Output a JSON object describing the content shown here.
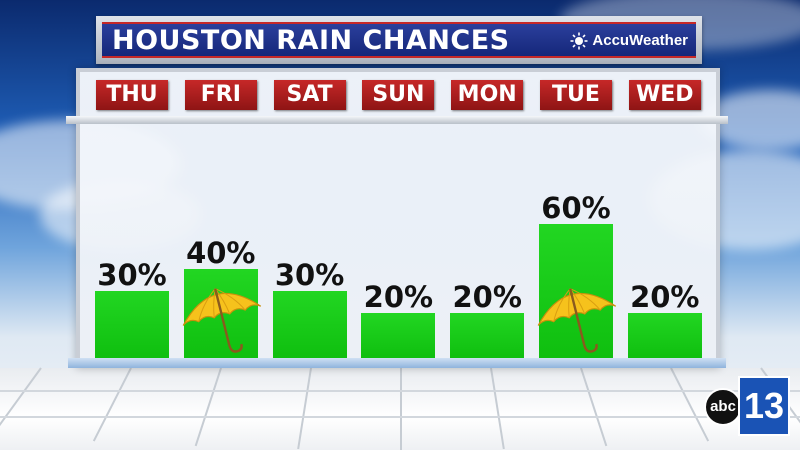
{
  "header": {
    "title": "HOUSTON RAIN CHANCES",
    "brand": "AccuWeather"
  },
  "logo": {
    "network": "abc",
    "channel": "13"
  },
  "colors": {
    "title_bg": "#1a2d86",
    "day_tab": "#b71c1c",
    "bar": "#19cc19",
    "umbrella": "#f6c21c"
  },
  "chart_data": {
    "type": "bar",
    "categories": [
      "THU",
      "FRI",
      "SAT",
      "SUN",
      "MON",
      "TUE",
      "WED"
    ],
    "values": [
      30,
      40,
      30,
      20,
      20,
      60,
      20
    ],
    "labels": [
      "30%",
      "40%",
      "30%",
      "20%",
      "20%",
      "60%",
      "20%"
    ],
    "umbrella_days": [
      "FRI",
      "TUE"
    ],
    "ylim": [
      0,
      100
    ]
  }
}
